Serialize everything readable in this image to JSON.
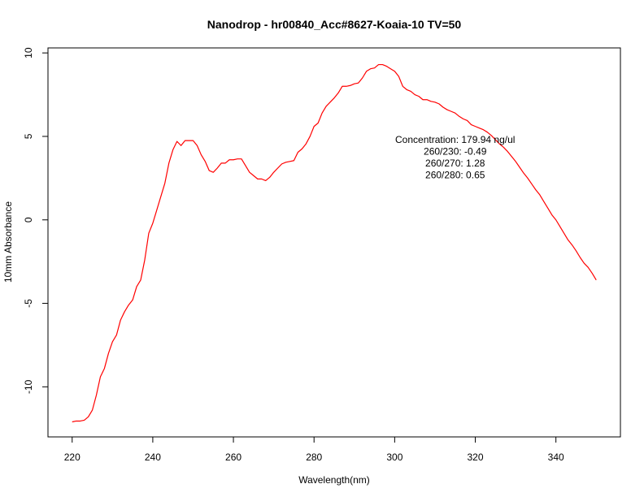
{
  "chart_data": {
    "type": "line",
    "title": "Nanodrop - hr00840_Acc#8627-Koaia-10 TV=50",
    "xlabel": "Wavelength(nm)",
    "ylabel": "10mm Absorbance",
    "xlim": [
      214,
      356
    ],
    "ylim": [
      -13,
      10.3
    ],
    "x_ticks": [
      220,
      240,
      260,
      280,
      300,
      320,
      340
    ],
    "y_ticks": [
      -10,
      -5,
      0,
      5,
      10
    ],
    "x_tick_labels": [
      "220",
      "240",
      "260",
      "280",
      "300",
      "320",
      "340"
    ],
    "y_tick_labels": [
      "-10",
      "-5",
      "0",
      "5",
      "10"
    ],
    "grid": false,
    "legend": "none",
    "line_color": "#ff0000",
    "annotation": [
      "Concentration: 179.94 ng/ul",
      "260/230: -0.49",
      "260/270: 1.28",
      "260/280: 0.65"
    ],
    "annotation_anchor": {
      "x": 315,
      "y": 4.6
    },
    "series": [
      {
        "x": [
          220,
          221,
          222,
          223,
          224,
          225,
          226,
          227,
          228,
          229,
          230,
          231,
          232,
          233,
          234,
          235,
          236,
          237,
          238,
          239,
          240,
          241,
          242,
          243,
          244,
          245,
          246,
          247,
          248,
          249,
          250,
          251,
          252,
          253,
          254,
          255,
          256,
          257,
          258,
          259,
          260,
          261,
          262,
          263,
          264,
          265,
          266,
          267,
          268,
          269,
          270,
          271,
          272,
          273,
          274,
          275,
          276,
          277,
          278,
          279,
          280,
          281,
          282,
          283,
          284,
          285,
          286,
          287,
          288,
          289,
          290,
          291,
          292,
          293,
          294,
          295,
          296,
          297,
          298,
          299,
          300,
          301,
          302,
          303,
          304,
          305,
          306,
          307,
          308,
          309,
          310,
          311,
          312,
          313,
          314,
          315,
          316,
          317,
          318,
          319,
          320,
          321,
          322,
          323,
          324,
          325,
          326,
          327,
          328,
          329,
          330,
          331,
          332,
          333,
          334,
          335,
          336,
          337,
          338,
          339,
          340,
          341,
          342,
          343,
          344,
          345,
          346,
          347,
          348,
          349,
          350
        ],
        "values": [
          -12.1,
          -12.05,
          -12.05,
          -12.0,
          -11.8,
          -11.4,
          -10.5,
          -9.4,
          -8.9,
          -8.0,
          -7.3,
          -6.9,
          -6.0,
          -5.5,
          -5.1,
          -4.8,
          -4.0,
          -3.6,
          -2.4,
          -0.8,
          -0.2,
          0.6,
          1.4,
          2.2,
          3.4,
          4.2,
          4.7,
          4.45,
          4.75,
          4.75,
          4.75,
          4.45,
          3.9,
          3.5,
          2.95,
          2.85,
          3.1,
          3.4,
          3.4,
          3.6,
          3.6,
          3.65,
          3.65,
          3.25,
          2.85,
          2.65,
          2.45,
          2.45,
          2.35,
          2.55,
          2.85,
          3.1,
          3.35,
          3.45,
          3.5,
          3.55,
          4.05,
          4.25,
          4.55,
          5.0,
          5.6,
          5.8,
          6.4,
          6.8,
          7.05,
          7.3,
          7.6,
          8.0,
          8.0,
          8.05,
          8.15,
          8.2,
          8.5,
          8.9,
          9.05,
          9.1,
          9.3,
          9.3,
          9.2,
          9.05,
          8.9,
          8.6,
          8.0,
          7.8,
          7.7,
          7.5,
          7.4,
          7.2,
          7.2,
          7.1,
          7.05,
          6.95,
          6.75,
          6.6,
          6.5,
          6.4,
          6.2,
          6.05,
          5.95,
          5.7,
          5.6,
          5.5,
          5.4,
          5.25,
          5.05,
          4.8,
          4.55,
          4.35,
          4.1,
          3.8,
          3.5,
          3.15,
          2.8,
          2.5,
          2.15,
          1.8,
          1.5,
          1.1,
          0.7,
          0.3,
          0.0,
          -0.4,
          -0.8,
          -1.2,
          -1.5,
          -1.85,
          -2.25,
          -2.6,
          -2.85,
          -3.2,
          -3.6
        ]
      }
    ]
  }
}
